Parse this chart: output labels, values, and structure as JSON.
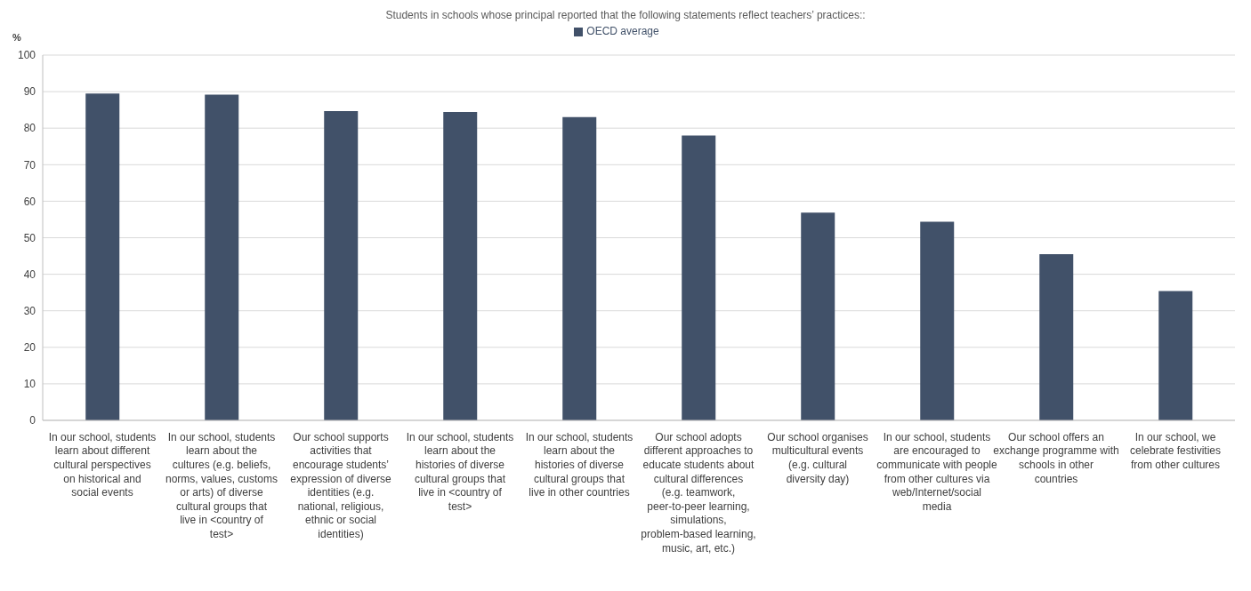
{
  "chart_data": {
    "type": "bar",
    "title": "Students in schools whose principal reported that the following statements reflect teachers’ practices::",
    "ylabel": "%",
    "categories": [
      "In our school, students learn about different cultural perspectives on historical and social events",
      "In our school, students learn about the cultures (e.g. beliefs, norms, values, customs or arts) of diverse cultural groups that live in <country of test>",
      "Our school supports activities that encourage students’ expression of diverse identities (e.g. national, religious, ethnic or social identities)",
      "In our school, students learn about the histories of diverse cultural groups that live in <country of test>",
      "In our school, students learn about the histories of diverse cultural groups that live in other countries",
      "Our school adopts different approaches to educate students about cultural differences (e.g. teamwork, peer-to-peer learning, simulations, problem-based learning, music, art, etc.)",
      "Our school organises multicultural events (e.g. cultural diversity day)",
      "In our school, students are encouraged to communicate with people from other cultures via web/Internet/social media",
      "Our school offers an exchange programme with schools in other countries",
      "In our school, we celebrate festivities from other cultures"
    ],
    "series": [
      {
        "name": "OECD average",
        "color": "#415169",
        "values": [
          89.5,
          89.2,
          84.7,
          84.4,
          83.0,
          78.0,
          56.9,
          54.4,
          45.5,
          35.4
        ]
      }
    ],
    "ylim": [
      0,
      100
    ],
    "yticks": [
      0,
      10,
      20,
      30,
      40,
      50,
      60,
      70,
      80,
      90,
      100
    ],
    "grid": "y",
    "legend": "top"
  }
}
